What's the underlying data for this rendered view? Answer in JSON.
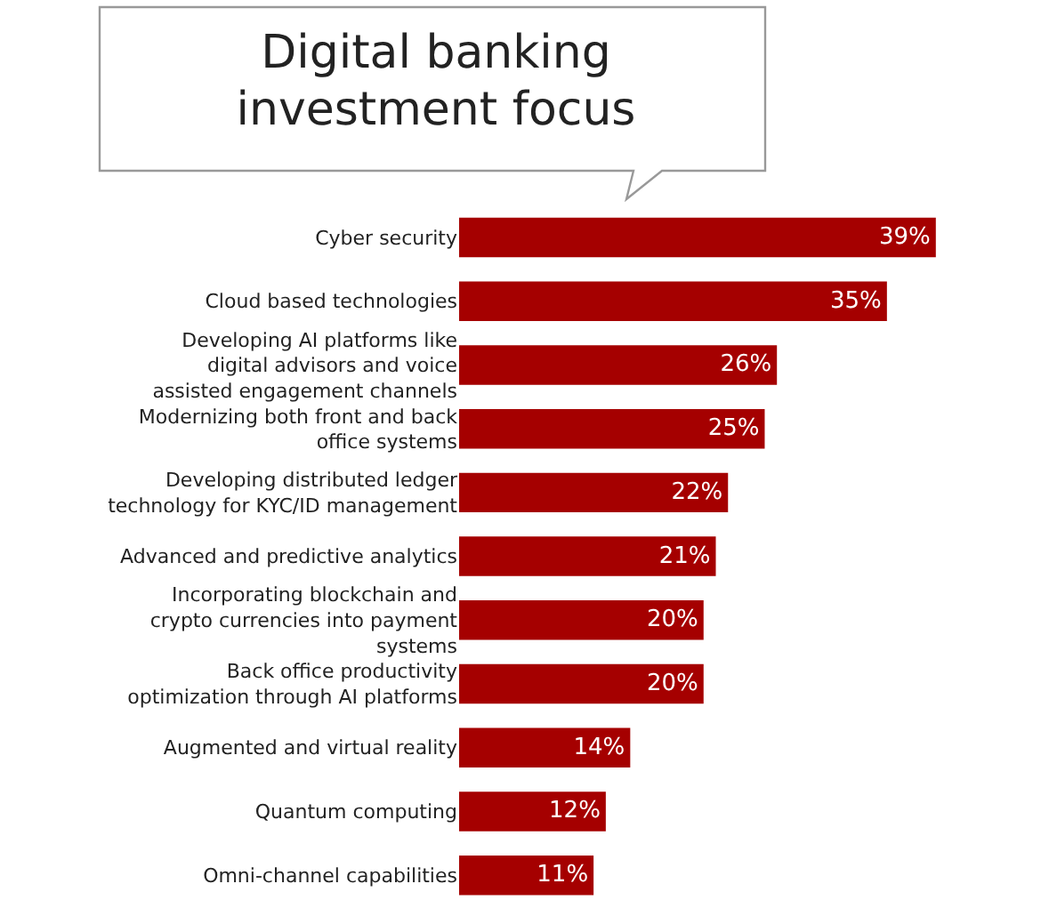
{
  "chart_data": {
    "type": "bar",
    "orientation": "horizontal",
    "title": "Digital banking investment focus",
    "categories": [
      "Cyber security",
      "Cloud based technologies",
      "Developing AI platforms like digital advisors and voice assisted engagement channels",
      "Modernizing both front and back office systems",
      "Developing distributed ledger technology for KYC/ID management",
      "Advanced and predictive analytics",
      "Incorporating blockchain and crypto currencies into payment systems",
      "Back office productivity optimization through AI platforms",
      "Augmented and virtual reality",
      "Quantum computing",
      "Omni-channel capabilities"
    ],
    "values": [
      39,
      35,
      26,
      25,
      22,
      21,
      20,
      20,
      14,
      12,
      11
    ],
    "value_labels": [
      "39%",
      "35%",
      "26%",
      "25%",
      "22%",
      "21%",
      "20%",
      "20%",
      "14%",
      "12%",
      "11%"
    ],
    "color": "#a50000"
  }
}
